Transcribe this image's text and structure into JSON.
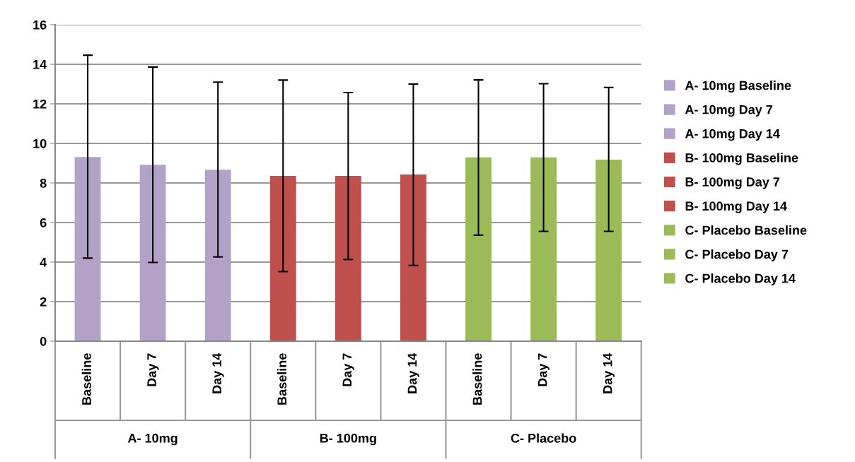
{
  "chart_data": {
    "type": "bar",
    "categories": [
      "Baseline",
      "Day 7",
      "Day 14",
      "Baseline",
      "Day 7",
      "Day 14",
      "Baseline",
      "Day 7",
      "Day 14"
    ],
    "series": [
      {
        "name": "A- 10mg Baseline",
        "color": "#b2a2c7",
        "values": [
          9.31,
          null,
          null,
          null,
          null,
          null,
          null,
          null,
          null
        ],
        "errors": [
          [
            4.2,
            14.46
          ],
          null,
          null,
          null,
          null,
          null,
          null,
          null,
          null
        ]
      },
      {
        "name": "A- 10mg Day 7",
        "color": "#b2a2c7",
        "values": [
          null,
          8.92,
          null,
          null,
          null,
          null,
          null,
          null,
          null
        ],
        "errors": [
          null,
          [
            3.98,
            13.86
          ],
          null,
          null,
          null,
          null,
          null,
          null,
          null
        ]
      },
      {
        "name": "A- 10mg Day 14",
        "color": "#b2a2c7",
        "values": [
          null,
          null,
          8.67,
          null,
          null,
          null,
          null,
          null,
          null
        ],
        "errors": [
          null,
          null,
          [
            4.26,
            13.1
          ],
          null,
          null,
          null,
          null,
          null,
          null
        ]
      },
      {
        "name": "B- 100mg Baseline",
        "color": "#c0504d",
        "values": [
          null,
          null,
          null,
          8.36,
          null,
          null,
          null,
          null,
          null
        ],
        "errors": [
          null,
          null,
          null,
          [
            3.52,
            13.2
          ],
          null,
          null,
          null,
          null,
          null
        ]
      },
      {
        "name": "B- 100mg Day 7",
        "color": "#c0504d",
        "values": [
          null,
          null,
          null,
          null,
          8.36,
          null,
          null,
          null,
          null
        ],
        "errors": [
          null,
          null,
          null,
          null,
          [
            4.13,
            12.57
          ],
          null,
          null,
          null,
          null
        ]
      },
      {
        "name": "B- 100mg Day 14",
        "color": "#c0504d",
        "values": [
          null,
          null,
          null,
          null,
          null,
          8.43,
          null,
          null,
          null
        ],
        "errors": [
          null,
          null,
          null,
          null,
          null,
          [
            3.83,
            13.0
          ],
          null,
          null,
          null
        ]
      },
      {
        "name": "C- Placebo Baseline",
        "color": "#9bbb59",
        "values": [
          null,
          null,
          null,
          null,
          null,
          null,
          9.29,
          null,
          null
        ],
        "errors": [
          null,
          null,
          null,
          null,
          null,
          null,
          [
            5.36,
            13.21
          ],
          null,
          null
        ]
      },
      {
        "name": "C- Placebo Day 7",
        "color": "#9bbb59",
        "values": [
          null,
          null,
          null,
          null,
          null,
          null,
          null,
          9.29,
          null
        ],
        "errors": [
          null,
          null,
          null,
          null,
          null,
          null,
          null,
          [
            5.55,
            13.02
          ],
          null
        ]
      },
      {
        "name": "C- Placebo Day 14",
        "color": "#9bbb59",
        "values": [
          null,
          null,
          null,
          null,
          null,
          null,
          null,
          null,
          9.18
        ],
        "errors": [
          null,
          null,
          null,
          null,
          null,
          null,
          null,
          null,
          [
            5.55,
            12.83
          ]
        ]
      }
    ],
    "annotations": [
      "A- 10mg",
      "B- 100mg",
      "C- Placebo"
    ],
    "ylim": [
      0,
      16
    ],
    "yticks": [
      0,
      2,
      4,
      6,
      8,
      10,
      12,
      14,
      16
    ],
    "grid": "y",
    "legend": "right"
  }
}
